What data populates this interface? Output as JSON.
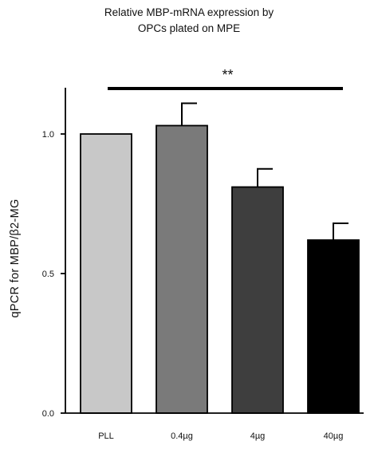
{
  "chart_data": {
    "type": "bar",
    "title_lines": [
      "Relative MBP-mRNA expression by",
      "OPCs plated on MPE"
    ],
    "ylabel": "qPCR for MBP/β2-MG",
    "xlabel": "",
    "categories": [
      "PLL",
      "0.4µg",
      "4µg",
      "40µg"
    ],
    "values": [
      1.0,
      1.03,
      0.81,
      0.62
    ],
    "errors": [
      0.0,
      0.08,
      0.065,
      0.06
    ],
    "ylim": [
      0,
      1.2
    ],
    "yticks": [
      0.0,
      0.5,
      1.0
    ],
    "ytick_labels": [
      "0.0",
      "0.5",
      "1.0"
    ],
    "bar_colors": [
      "#c8c8c8",
      "#7a7a7a",
      "#3e3e3e",
      "#000000"
    ],
    "significance": {
      "label": "**",
      "from_category": "PLL",
      "to_category": "40µg"
    },
    "grid": false,
    "legend": "none"
  }
}
